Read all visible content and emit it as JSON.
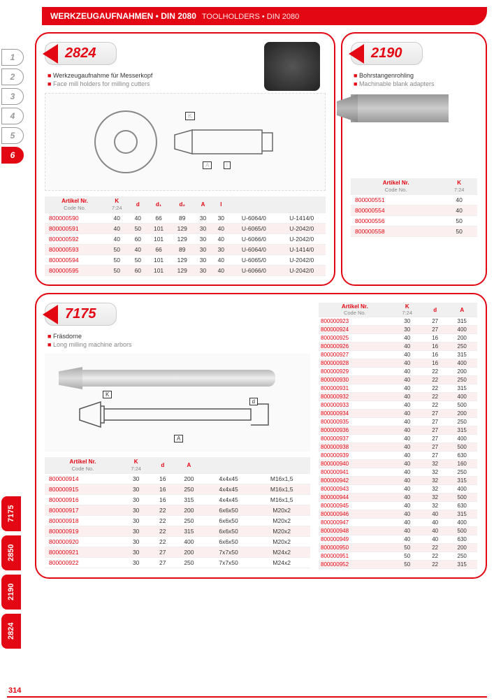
{
  "header": {
    "de": "WERKZEUGAUFNAHMEN • DIN 2080",
    "en": "TOOLHOLDERS • DIN 2080"
  },
  "page": "314",
  "nav": [
    "1",
    "2",
    "3",
    "4",
    "5",
    "6"
  ],
  "navActive": 5,
  "sidetabs": [
    "7175",
    "2850",
    "2190",
    "2824"
  ],
  "p2824": {
    "num": "2824",
    "de": "Werkzeugaufnahme für Messerkopf",
    "en": "Face mill holders for milling cutters",
    "headers": [
      [
        "Artikel Nr.",
        "Code No."
      ],
      [
        "K",
        "7:24"
      ],
      [
        "d",
        ""
      ],
      [
        "d₁",
        ""
      ],
      [
        "d₂",
        ""
      ],
      [
        "A",
        ""
      ],
      [
        "l",
        ""
      ],
      [
        "",
        ""
      ],
      [
        "",
        ""
      ]
    ],
    "rows": [
      [
        "800000590",
        "40",
        "40",
        "66",
        "89",
        "30",
        "30",
        "U-6064/0",
        "U-1414/0"
      ],
      [
        "800000591",
        "40",
        "50",
        "101",
        "129",
        "30",
        "40",
        "U-6065/0",
        "U-2042/0"
      ],
      [
        "800000592",
        "40",
        "60",
        "101",
        "129",
        "30",
        "40",
        "U-6066/0",
        "U-2042/0"
      ],
      [
        "800000593",
        "50",
        "40",
        "66",
        "89",
        "30",
        "30",
        "U-6064/0",
        "U-1414/0"
      ],
      [
        "800000594",
        "50",
        "50",
        "101",
        "129",
        "30",
        "40",
        "U-6065/0",
        "U-2042/0"
      ],
      [
        "800000595",
        "50",
        "60",
        "101",
        "129",
        "30",
        "40",
        "U-6066/0",
        "U-2042/0"
      ]
    ]
  },
  "p2190": {
    "num": "2190",
    "de": "Bohrstangenrohling",
    "en": "Machinable blank adapters",
    "headers": [
      [
        "Artikel Nr.",
        "Code No."
      ],
      [
        "K",
        "7:24"
      ]
    ],
    "rows": [
      [
        "800000551",
        "40"
      ],
      [
        "800000554",
        "40"
      ],
      [
        "800000556",
        "50"
      ],
      [
        "800000558",
        "50"
      ]
    ]
  },
  "p7175": {
    "num": "7175",
    "de": "Fräsdorne",
    "en": "Long milling machine arbors",
    "headers1": [
      [
        "Artikel Nr.",
        "Code No."
      ],
      [
        "K",
        "7:24"
      ],
      [
        "d",
        ""
      ],
      [
        "A",
        ""
      ],
      [
        "",
        ""
      ],
      [
        "",
        ""
      ]
    ],
    "rows1": [
      [
        "800000914",
        "30",
        "16",
        "200",
        "4x4x45",
        "M16x1,5"
      ],
      [
        "800000915",
        "30",
        "16",
        "250",
        "4x4x45",
        "M16x1,5"
      ],
      [
        "800000916",
        "30",
        "16",
        "315",
        "4x4x45",
        "M16x1,5"
      ],
      [
        "800000917",
        "30",
        "22",
        "200",
        "6x6x50",
        "M20x2"
      ],
      [
        "800000918",
        "30",
        "22",
        "250",
        "6x6x50",
        "M20x2"
      ],
      [
        "800000919",
        "30",
        "22",
        "315",
        "6x6x50",
        "M20x2"
      ],
      [
        "800000920",
        "30",
        "22",
        "400",
        "6x6x50",
        "M20x2"
      ],
      [
        "800000921",
        "30",
        "27",
        "200",
        "7x7x50",
        "M24x2"
      ],
      [
        "800000922",
        "30",
        "27",
        "250",
        "7x7x50",
        "M24x2"
      ]
    ],
    "headers2": [
      [
        "Artikel Nr.",
        "Code No."
      ],
      [
        "K",
        "7:24"
      ],
      [
        "d",
        ""
      ],
      [
        "A",
        ""
      ]
    ],
    "rows2": [
      [
        "800000923",
        "30",
        "27",
        "315"
      ],
      [
        "800000924",
        "30",
        "27",
        "400"
      ],
      [
        "800000925",
        "40",
        "16",
        "200"
      ],
      [
        "800000926",
        "40",
        "16",
        "250"
      ],
      [
        "800000927",
        "40",
        "16",
        "315"
      ],
      [
        "800000928",
        "40",
        "16",
        "400"
      ],
      [
        "800000929",
        "40",
        "22",
        "200"
      ],
      [
        "800000930",
        "40",
        "22",
        "250"
      ],
      [
        "800000931",
        "40",
        "22",
        "315"
      ],
      [
        "800000932",
        "40",
        "22",
        "400"
      ],
      [
        "800000933",
        "40",
        "22",
        "500"
      ],
      [
        "800000934",
        "40",
        "27",
        "200"
      ],
      [
        "800000935",
        "40",
        "27",
        "250"
      ],
      [
        "800000936",
        "40",
        "27",
        "315"
      ],
      [
        "800000937",
        "40",
        "27",
        "400"
      ],
      [
        "800000938",
        "40",
        "27",
        "500"
      ],
      [
        "800000939",
        "40",
        "27",
        "630"
      ],
      [
        "800000940",
        "40",
        "32",
        "160"
      ],
      [
        "800000941",
        "40",
        "32",
        "250"
      ],
      [
        "800000942",
        "40",
        "32",
        "315"
      ],
      [
        "800000943",
        "40",
        "32",
        "400"
      ],
      [
        "800000944",
        "40",
        "32",
        "500"
      ],
      [
        "800000945",
        "40",
        "32",
        "630"
      ],
      [
        "800000946",
        "40",
        "40",
        "315"
      ],
      [
        "800000947",
        "40",
        "40",
        "400"
      ],
      [
        "800000948",
        "40",
        "40",
        "500"
      ],
      [
        "800000949",
        "40",
        "40",
        "630"
      ],
      [
        "800000950",
        "50",
        "22",
        "200"
      ],
      [
        "800000951",
        "50",
        "22",
        "250"
      ],
      [
        "800000952",
        "50",
        "22",
        "315"
      ]
    ]
  }
}
